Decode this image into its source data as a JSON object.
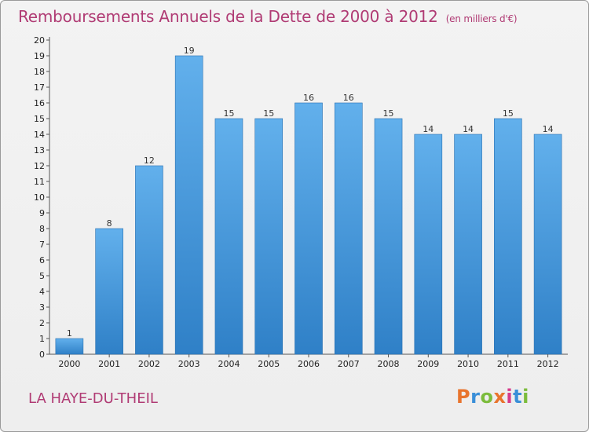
{
  "header": {
    "title": "Remboursements Annuels de la Dette de 2000 à 2012",
    "unit": "(en milliers d'€)"
  },
  "footer": {
    "commune": "LA HAYE-DU-THEIL",
    "logo_text": "Proxiti",
    "logo_colors": [
      "#e8742d",
      "#3a8fd8",
      "#7cbc3c",
      "#e8742d",
      "#d63a8a",
      "#3a8fd8",
      "#7cbc3c"
    ]
  },
  "colors": {
    "bar_top": "#62b0ec",
    "bar_bottom": "#2f80c7",
    "title": "#b03b74",
    "grid": "#dddddd"
  },
  "chart_data": {
    "type": "bar",
    "title": "Remboursements Annuels de la Dette de 2000 à 2012",
    "xlabel": "",
    "ylabel": "",
    "ylim": [
      0,
      20
    ],
    "yticks": [
      0,
      1,
      2,
      3,
      4,
      5,
      6,
      7,
      8,
      9,
      10,
      11,
      12,
      13,
      14,
      15,
      16,
      17,
      18,
      19,
      20
    ],
    "grid": false,
    "categories": [
      "2000",
      "2001",
      "2002",
      "2003",
      "2004",
      "2005",
      "2006",
      "2007",
      "2008",
      "2009",
      "2010",
      "2011",
      "2012"
    ],
    "values": [
      1,
      8,
      12,
      19,
      15,
      15,
      16,
      16,
      15,
      14,
      14,
      15,
      14
    ]
  }
}
